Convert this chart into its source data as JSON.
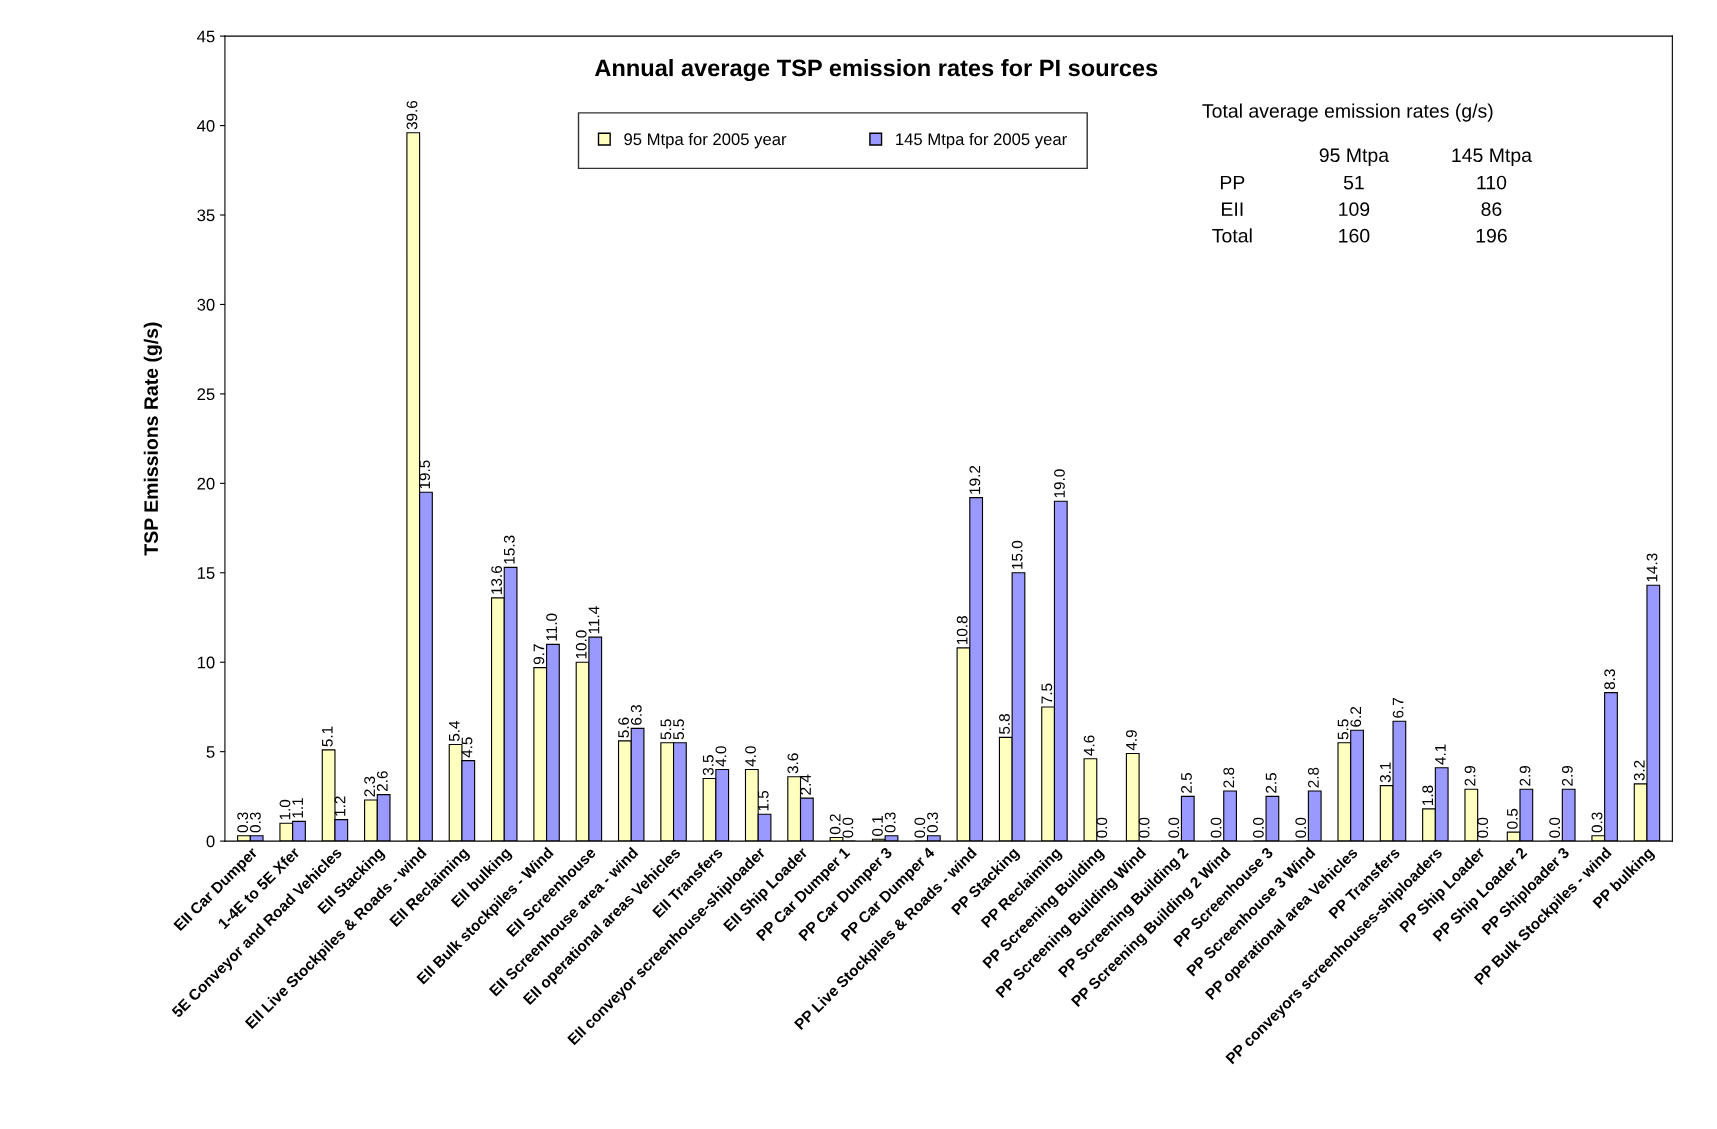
{
  "chart_data": {
    "type": "bar",
    "title": "Annual average TSP emission rates for PI sources",
    "ylabel": "TSP Emissions Rate (g/s)",
    "categories": [
      "EII Car Dumper",
      "1-4E to 5E Xfer",
      "5E Conveyor and Road Vehicles",
      "EII Stacking",
      "EII Live Stockpiles & Roads - wind",
      "EII Reclaiming",
      "EII bulking",
      "EII Bulk stockpiles - Wind",
      "EII Screenhouse",
      "EII Screenhouse area - wind",
      "EII operational areas Vehicles",
      "EII Transfers",
      "EII conveyor screenhouse-shiploader",
      "EII Ship Loader",
      "PP Car Dumper 1",
      "PP Car Dumper 3",
      "PP Car Dumper 4",
      "PP Live Stockpiles & Roads - wind",
      "PP Stacking",
      "PP Reclaiming",
      "PP Screening Building",
      "PP Screening Building Wind",
      "PP Screening Building 2",
      "PP Screening Building 2 Wind",
      "PP Screenhouse 3",
      "PP Screenhouse 3 Wind",
      "PP operational area Vehicles",
      "PP Transfers",
      "PP conveyors screenhouses-shiploaders",
      "PP Ship Loader",
      "PP Ship Loader 2",
      "PP Shiploader 3",
      "PP Bulk Stockpiles - wind",
      "PP bulking"
    ],
    "series": [
      {
        "name": "95 Mtpa for 2005 year",
        "color": "#ffffc0",
        "values": [
          0.3,
          1.0,
          5.1,
          2.3,
          39.6,
          5.4,
          13.6,
          9.7,
          10.0,
          5.6,
          5.5,
          3.5,
          4.0,
          3.6,
          0.2,
          0.1,
          0.0,
          10.8,
          5.8,
          7.5,
          4.6,
          4.9,
          0.0,
          0.0,
          0.0,
          0.0,
          5.5,
          3.1,
          1.8,
          2.9,
          0.5,
          0.0,
          0.3,
          3.2
        ],
        "value_labels": [
          "0.3",
          "1.0",
          "5.1",
          "2.3",
          "39.6",
          "5.4",
          "13.6",
          "9.7",
          "10.0",
          "5.6",
          "5.5",
          "3.5",
          "4.0",
          "3.6",
          "0.2",
          "0.1",
          "0.0",
          "10.8",
          "5.8",
          "7.5",
          "4.6",
          "4.9",
          "0.0",
          "0.0",
          "0.0",
          "0.0",
          "5.5",
          "3.1",
          "1.8",
          "2.9",
          "0.5",
          "0.0",
          "0.3",
          "3.2"
        ]
      },
      {
        "name": "145 Mtpa for 2005 year",
        "color": "#9999ff",
        "values": [
          0.3,
          1.1,
          1.2,
          2.6,
          19.5,
          4.5,
          15.3,
          11.0,
          11.4,
          6.3,
          5.5,
          4.0,
          1.5,
          2.4,
          0.0,
          0.3,
          0.3,
          19.2,
          15.0,
          19.0,
          0.0,
          0.0,
          2.5,
          2.8,
          2.5,
          2.8,
          6.2,
          6.7,
          4.1,
          0.0,
          2.9,
          2.9,
          8.3,
          14.3
        ],
        "value_labels": [
          "0.3",
          "1.1",
          "1.2",
          "2.6",
          "19.5",
          "4.5",
          "15.3",
          "11.0",
          "11.4",
          "6.3",
          "5.5",
          "4.0",
          "1.5",
          "2.4",
          "0.0",
          "0.3",
          "0.3",
          "19.2",
          "15.0",
          "19.0",
          "0.0",
          "0.0",
          "2.5",
          "2.8",
          "2.5",
          "2.8",
          "6.2",
          "6.7",
          "4.1",
          "0.0",
          "2.9",
          "2.9",
          "8.3",
          "14.3"
        ]
      }
    ],
    "ylim": [
      0,
      45
    ],
    "yticks": [
      0,
      5,
      10,
      15,
      20,
      25,
      30,
      35,
      40,
      45
    ],
    "legend": "top",
    "grid": false,
    "annotations": [
      "Total average emission rates (g/s)",
      "95 Mtpa",
      "145 Mtpa",
      "PP",
      "51",
      "110",
      "EII",
      "109",
      "86",
      "Total",
      "160",
      "196"
    ]
  }
}
